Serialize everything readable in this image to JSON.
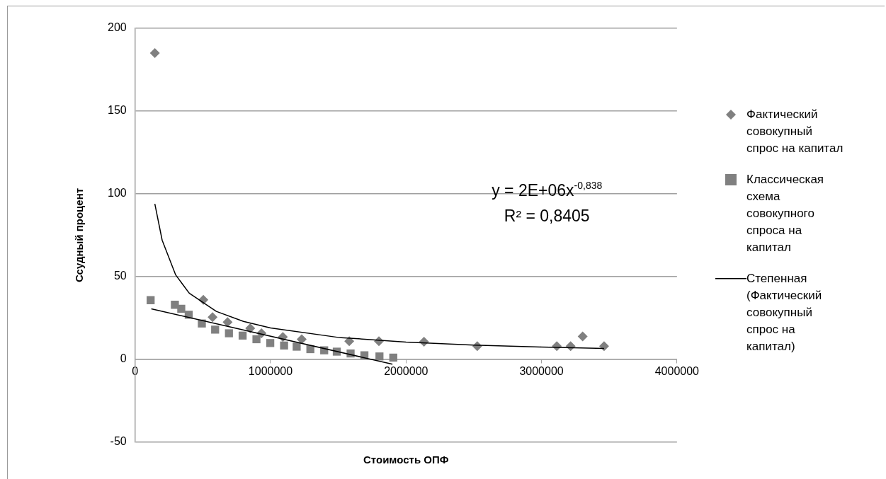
{
  "chart_data": {
    "type": "scatter",
    "xlabel": "Стоимость ОПФ",
    "ylabel": "Ссудный процент",
    "xlim": [
      0,
      4000000
    ],
    "xticks": [
      0,
      1000000,
      2000000,
      3000000,
      4000000
    ],
    "ylim": [
      -50,
      200
    ],
    "yticks": [
      -50,
      0,
      50,
      100,
      150,
      200
    ],
    "grid": "y",
    "legend": "right",
    "annotations": [
      "y = 2E+06x$^{-0,838}$",
      "R² = 0,8405"
    ],
    "series": [
      {
        "name": "Фактический совокупный спрос на капитал",
        "type": "scatter",
        "marker": "diamond",
        "color": "#808080",
        "x": [
          146000,
          504000,
          572000,
          683000,
          850000,
          933000,
          1091000,
          1230000,
          1581000,
          1800000,
          2133000,
          2526000,
          3113000,
          3215000,
          3304000,
          3462000
        ],
        "values": [
          185,
          36,
          25.5,
          22.5,
          18.8,
          15.8,
          13.6,
          12.2,
          11,
          11,
          10.7,
          8,
          8,
          8,
          13.9,
          8
        ]
      },
      {
        "name": "Классическая схема совокупного спроса на капитал",
        "type": "scatter",
        "marker": "square",
        "color": "#808080",
        "x": [
          115000,
          294000,
          341000,
          396000,
          493000,
          591000,
          693000,
          794000,
          896000,
          998000,
          1100000,
          1193000,
          1294000,
          1396000,
          1489000,
          1591000,
          1693000,
          1804000,
          1906000
        ],
        "values": [
          35.8,
          33,
          30.6,
          27,
          21.7,
          18,
          15.8,
          14.4,
          12.2,
          9.9,
          8.4,
          7.7,
          6.2,
          5.5,
          4.7,
          3.6,
          2.5,
          1.8,
          1.1
        ]
      },
      {
        "name": "Степенная (Фактический совокупный спрос на капитал)",
        "type": "line",
        "marker": "none",
        "color": "#000000",
        "x": [
          146000,
          200000,
          300000,
          400000,
          600000,
          800000,
          1000000,
          1500000,
          2000000,
          2500000,
          3000000,
          3462000
        ],
        "values": [
          94,
          72,
          51,
          40,
          29,
          23,
          19,
          13.3,
          10.5,
          8.7,
          7.5,
          6.6
        ]
      },
      {
        "type": "line",
        "marker": "none",
        "color": "#000000",
        "x": [
          120000,
          1900000
        ],
        "values": [
          30.6,
          -2.9
        ]
      }
    ]
  }
}
